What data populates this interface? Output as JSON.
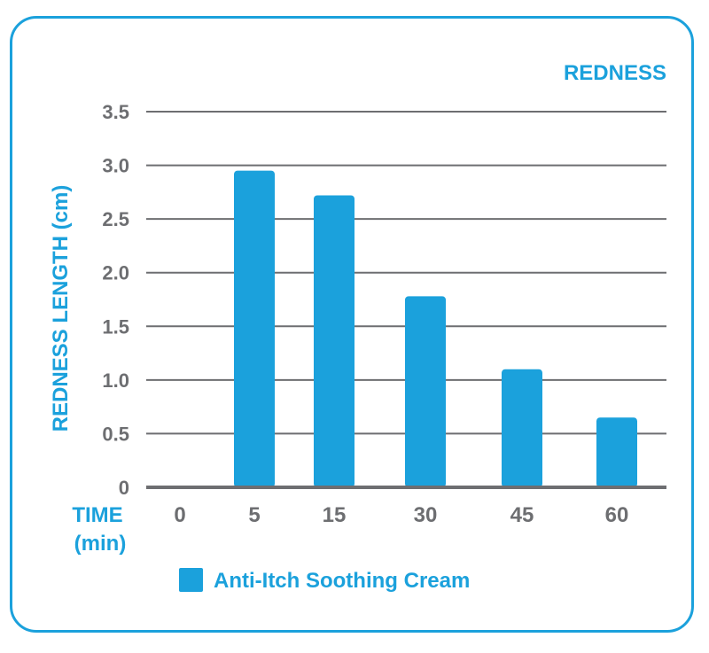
{
  "chart_data": {
    "type": "bar",
    "title": "REDNESS",
    "ylabel": "REDNESS LENGTH (cm)",
    "xlabel_line1": "TIME",
    "xlabel_line2": "(min)",
    "categories": [
      "0",
      "5",
      "15",
      "30",
      "45",
      "60"
    ],
    "series": [
      {
        "name": "Anti-Itch Soothing Cream",
        "values": [
          0,
          2.95,
          2.72,
          1.78,
          1.1,
          0.65
        ]
      }
    ],
    "ylim": [
      0,
      3.5
    ],
    "yticks": [
      "0",
      "0.5",
      "1.0",
      "1.5",
      "2.0",
      "2.5",
      "3.0",
      "3.5"
    ],
    "grid": true,
    "legend_position": "bottom",
    "colors": {
      "bar": "#1ba1dc",
      "text_blue": "#1ba1dc",
      "text_gray": "#6d6e71",
      "grid": "#6d6e71"
    }
  }
}
